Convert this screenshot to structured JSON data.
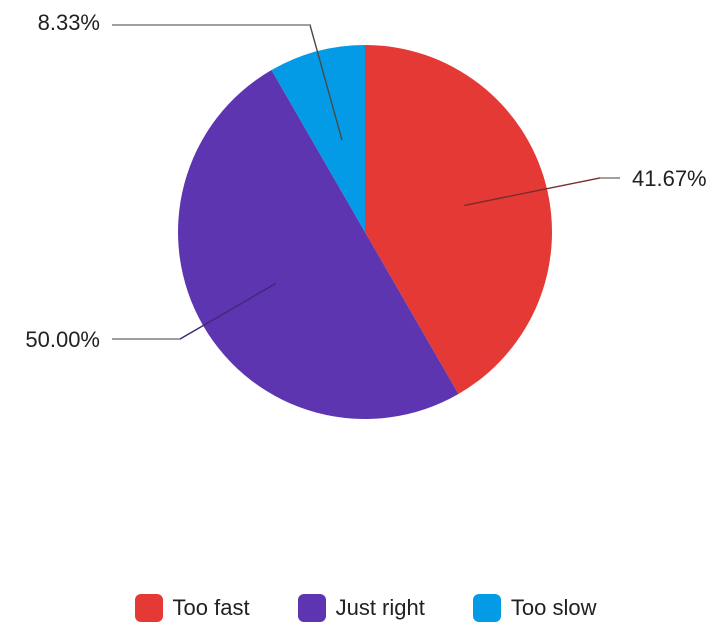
{
  "chart_data": {
    "type": "pie",
    "start_angle_deg": 0,
    "direction": "clockwise",
    "legend_position": "bottom",
    "slices": [
      {
        "label": "Too fast",
        "value": 41.67,
        "display": "41.67%",
        "color": "#e53935"
      },
      {
        "label": "Just right",
        "value": 50.0,
        "display": "50.00%",
        "color": "#5e35b1"
      },
      {
        "label": "Too slow",
        "value": 8.33,
        "display": "8.33%",
        "color": "#039be5"
      }
    ]
  },
  "colors": {
    "leader_line": "#9e9e9e",
    "text": "#212121"
  }
}
